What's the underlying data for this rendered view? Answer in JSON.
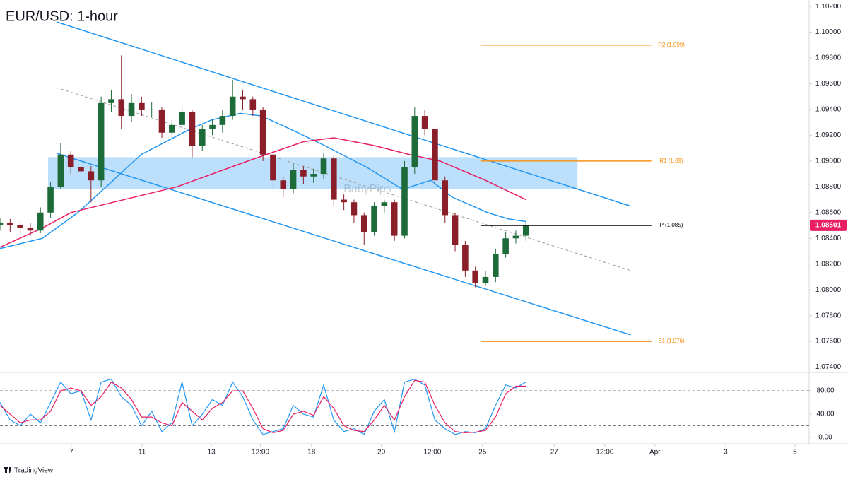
{
  "chart_data": [
    {
      "type": "candlestick",
      "title": "EUR/USD: 1-hour",
      "watermark": "BabyPips",
      "xlim": [
        0,
        160
      ],
      "ylim": [
        1.0737,
        1.1025
      ],
      "yticks": [
        {
          "value": 1.102,
          "label": "1.10200"
        },
        {
          "value": 1.1,
          "label": "1.10000"
        },
        {
          "value": 1.098,
          "label": "1.09800"
        },
        {
          "value": 1.096,
          "label": "1.09600"
        },
        {
          "value": 1.094,
          "label": "1.09400"
        },
        {
          "value": 1.092,
          "label": "1.09200"
        },
        {
          "value": 1.09,
          "label": "1.09000"
        },
        {
          "value": 1.088,
          "label": "1.08800"
        },
        {
          "value": 1.086,
          "label": "1.08600"
        },
        {
          "value": 1.084,
          "label": "1.08400"
        },
        {
          "value": 1.082,
          "label": "1.08200"
        },
        {
          "value": 1.08,
          "label": "1.08000"
        },
        {
          "value": 1.078,
          "label": "1.07800"
        },
        {
          "value": 1.076,
          "label": "1.07600"
        },
        {
          "value": 1.074,
          "label": "1.07400"
        }
      ],
      "up_color": "#1e6b3a",
      "down_color": "#8a1f2a",
      "x": [
        0,
        2,
        4,
        6,
        8,
        10,
        12,
        14,
        16,
        18,
        20,
        22,
        24,
        26,
        28,
        30,
        32,
        34,
        36,
        38,
        40,
        42,
        44,
        46,
        48,
        50,
        52,
        54,
        56,
        58,
        60,
        62,
        64,
        66,
        68,
        70,
        72,
        74,
        76,
        78,
        80,
        82,
        84,
        86,
        88,
        90,
        92,
        94,
        96,
        98,
        100,
        102,
        104
      ],
      "ohlc": [
        [
          1.085,
          1.0856,
          1.0846,
          1.0852
        ],
        [
          1.0852,
          1.0855,
          1.0845,
          1.085
        ],
        [
          1.085,
          1.0853,
          1.0843,
          1.0848
        ],
        [
          1.0848,
          1.0852,
          1.0842,
          1.0846
        ],
        [
          1.0846,
          1.0864,
          1.0844,
          1.086
        ],
        [
          1.086,
          1.0884,
          1.0856,
          1.088
        ],
        [
          1.088,
          1.0914,
          1.0878,
          1.0905
        ],
        [
          1.0905,
          1.0908,
          1.089,
          1.0895
        ],
        [
          1.0895,
          1.0902,
          1.0886,
          1.0892
        ],
        [
          1.0892,
          1.0896,
          1.0868,
          1.0885
        ],
        [
          1.0885,
          1.095,
          1.088,
          1.0945
        ],
        [
          1.0945,
          1.0955,
          1.0938,
          1.0948
        ],
        [
          1.0948,
          1.0982,
          1.0925,
          1.0935
        ],
        [
          1.0935,
          1.0952,
          1.093,
          1.0945
        ],
        [
          1.0945,
          1.095,
          1.0935,
          1.094
        ],
        [
          1.094,
          1.0946,
          1.0934,
          1.094
        ],
        [
          1.094,
          1.0942,
          1.0918,
          1.0922
        ],
        [
          1.0922,
          1.0932,
          1.0918,
          1.0928
        ],
        [
          1.0928,
          1.0942,
          1.0925,
          1.0938
        ],
        [
          1.0938,
          1.094,
          1.0903,
          1.0912
        ],
        [
          1.0912,
          1.0928,
          1.0908,
          1.0925
        ],
        [
          1.0925,
          1.0932,
          1.092,
          1.0928
        ],
        [
          1.0928,
          1.094,
          1.0922,
          1.0935
        ],
        [
          1.0935,
          1.0963,
          1.0932,
          1.095
        ],
        [
          1.095,
          1.0955,
          1.094,
          1.0948
        ],
        [
          1.0948,
          1.095,
          1.0935,
          1.094
        ],
        [
          1.094,
          1.0942,
          1.09,
          1.0905
        ],
        [
          1.0905,
          1.0908,
          1.088,
          1.0885
        ],
        [
          1.0885,
          1.0888,
          1.0872,
          1.0878
        ],
        [
          1.0878,
          1.0898,
          1.0875,
          1.0893
        ],
        [
          1.0893,
          1.0896,
          1.0882,
          1.0888
        ],
        [
          1.0888,
          1.0894,
          1.0883,
          1.089
        ],
        [
          1.089,
          1.0906,
          1.0886,
          1.0902
        ],
        [
          1.0902,
          1.0904,
          1.0865,
          1.087
        ],
        [
          1.087,
          1.0874,
          1.0862,
          1.0868
        ],
        [
          1.0868,
          1.087,
          1.0852,
          1.0858
        ],
        [
          1.0858,
          1.086,
          1.0835,
          1.0845
        ],
        [
          1.0845,
          1.0868,
          1.0842,
          1.0865
        ],
        [
          1.0865,
          1.087,
          1.086,
          1.0868
        ],
        [
          1.0868,
          1.087,
          1.0838,
          1.0842
        ],
        [
          1.0842,
          1.09,
          1.084,
          1.0895
        ],
        [
          1.0895,
          1.0942,
          1.089,
          1.0935
        ],
        [
          1.0935,
          1.094,
          1.092,
          1.0925
        ],
        [
          1.0925,
          1.0928,
          1.088,
          1.0885
        ],
        [
          1.0885,
          1.0888,
          1.0852,
          1.0858
        ],
        [
          1.0858,
          1.086,
          1.083,
          1.0835
        ],
        [
          1.0835,
          1.0838,
          1.081,
          1.0815
        ],
        [
          1.0815,
          1.0818,
          1.0802,
          1.0805
        ],
        [
          1.0805,
          1.0815,
          1.0803,
          1.081
        ],
        [
          1.081,
          1.0832,
          1.0806,
          1.0828
        ],
        [
          1.0828,
          1.0845,
          1.0825,
          1.084
        ],
        [
          1.084,
          1.0846,
          1.0836,
          1.0842
        ],
        [
          1.0842,
          1.0853,
          1.0838,
          1.085
        ]
      ],
      "moving_averages": [
        {
          "color": "#2196f3",
          "x": [
            0,
            8.4,
            15.4,
            21,
            27.9,
            37.7,
            41.9,
            47.5,
            51.7,
            57.3,
            64.2,
            72.6,
            79.6,
            85.2,
            89.4,
            96.4,
            100.6,
            104
          ],
          "values": [
            1.0832,
            1.084,
            1.086,
            1.088,
            1.0905,
            1.0925,
            1.0932,
            1.0937,
            1.0935,
            1.0925,
            1.0912,
            1.0895,
            1.0878,
            1.0885,
            1.0872,
            1.086,
            1.0855,
            1.0853
          ]
        },
        {
          "color": "#e91e63",
          "x": [
            0,
            8.4,
            14,
            35,
            49,
            60,
            66,
            74,
            81,
            87,
            96,
            104
          ],
          "values": [
            1.0833,
            1.0848,
            1.086,
            1.088,
            1.09,
            1.0915,
            1.0918,
            1.0912,
            1.0905,
            1.09,
            1.0885,
            1.087
          ]
        }
      ],
      "trendlines": [
        {
          "color": "#2196f3",
          "dashed": false,
          "x": [
            11.2,
            124.7
          ],
          "values": [
            1.1008,
            1.0865
          ]
        },
        {
          "color": "#2196f3",
          "dashed": false,
          "x": [
            11.2,
            124.7
          ],
          "values": [
            1.0906,
            1.0765
          ]
        },
        {
          "color": "#9e9e9e",
          "dashed": true,
          "x": [
            11.2,
            124.7
          ],
          "values": [
            1.0957,
            1.0815
          ]
        }
      ],
      "zone": {
        "color": "#2196f3",
        "x": [
          9.5,
          114.2
        ],
        "values": [
          1.0878,
          1.0903
        ]
      },
      "levels": [
        {
          "label": "R2 (1.099)",
          "value": 1.099,
          "color": "#f7931a",
          "x": [
            95,
            128.8
          ]
        },
        {
          "label": "R1 (1.09)",
          "value": 1.09,
          "color": "#f7931a",
          "x": [
            95,
            128.8
          ]
        },
        {
          "label": "P (1.085)",
          "value": 1.085,
          "color": "#000000",
          "x": [
            95,
            128.8
          ]
        },
        {
          "label": "S1 (1.076)",
          "value": 1.076,
          "color": "#f7931a",
          "x": [
            95,
            128.8
          ]
        }
      ],
      "last_price": {
        "value": 1.08501,
        "label": "1.08501",
        "color": "#e91e63"
      }
    },
    {
      "type": "line",
      "xlim": [
        0,
        160
      ],
      "ylim": [
        -11,
        108
      ],
      "yticks": [
        {
          "value": 80,
          "label": "80.00"
        },
        {
          "value": 40,
          "label": "40.00"
        },
        {
          "value": 0,
          "label": "0.00"
        }
      ],
      "reference_lines": [
        80,
        20
      ],
      "xticks": [
        {
          "value": 14.1,
          "label": "7"
        },
        {
          "value": 28.1,
          "label": "11"
        },
        {
          "value": 41.8,
          "label": "13"
        },
        {
          "value": 51.5,
          "label": "12:00"
        },
        {
          "value": 61.6,
          "label": "18"
        },
        {
          "value": 75.4,
          "label": "20"
        },
        {
          "value": 85.5,
          "label": "12:00"
        },
        {
          "value": 95.4,
          "label": "25"
        },
        {
          "value": 109.6,
          "label": "27"
        },
        {
          "value": 119.6,
          "label": "12:00"
        },
        {
          "value": 129.5,
          "label": "Apr"
        },
        {
          "value": 143.5,
          "label": "3"
        },
        {
          "value": 157.2,
          "label": "5"
        }
      ],
      "x": [
        0,
        2,
        4,
        6,
        8,
        10,
        12,
        14,
        16,
        18,
        20,
        22,
        24,
        26,
        28,
        30,
        32,
        34,
        36,
        38,
        40,
        42,
        44,
        46,
        48,
        50,
        52,
        54,
        56,
        58,
        60,
        62,
        64,
        66,
        68,
        70,
        72,
        74,
        76,
        78,
        80,
        82,
        84,
        86,
        88,
        90,
        92,
        94,
        96,
        98,
        100,
        102,
        104
      ],
      "series": [
        {
          "color": "#2196f3",
          "values": [
            60,
            30,
            20,
            40,
            25,
            60,
            95,
            75,
            80,
            30,
            95,
            100,
            70,
            55,
            20,
            45,
            10,
            25,
            95,
            20,
            40,
            65,
            55,
            95,
            70,
            30,
            5,
            10,
            15,
            55,
            40,
            35,
            90,
            30,
            10,
            15,
            5,
            45,
            65,
            10,
            95,
            100,
            90,
            30,
            15,
            5,
            10,
            8,
            15,
            55,
            90,
            85,
            95
          ]
        },
        {
          "color": "#e91e63",
          "values": [
            55,
            40,
            25,
            30,
            30,
            45,
            80,
            85,
            80,
            55,
            70,
            95,
            85,
            65,
            35,
            35,
            25,
            20,
            60,
            45,
            30,
            50,
            60,
            80,
            80,
            50,
            15,
            8,
            12,
            40,
            45,
            38,
            70,
            50,
            20,
            12,
            10,
            30,
            55,
            30,
            70,
            98,
            95,
            55,
            25,
            10,
            8,
            9,
            12,
            35,
            75,
            88,
            88
          ]
        }
      ]
    }
  ],
  "branding": "TradingView"
}
